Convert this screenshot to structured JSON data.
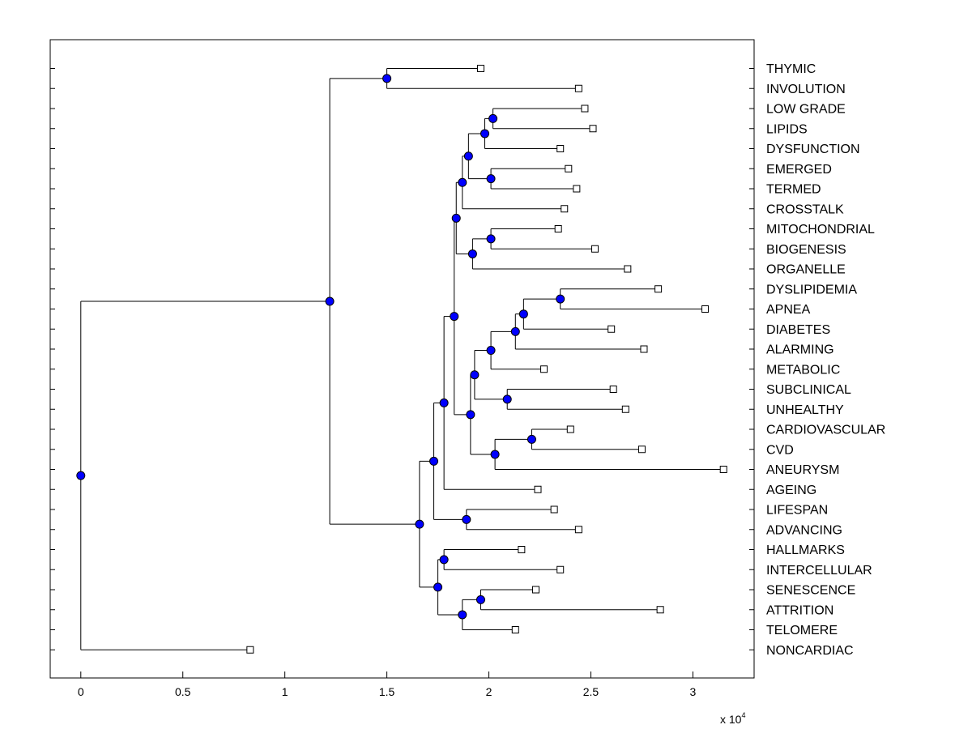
{
  "chart_data": {
    "type": "dendrogram",
    "title": "",
    "xlabel": "",
    "ylabel": "",
    "xlim": [
      -1500,
      33000
    ],
    "x_ticks": [
      {
        "value": 0,
        "label": "0"
      },
      {
        "value": 5000,
        "label": "0.5"
      },
      {
        "value": 10000,
        "label": "1"
      },
      {
        "value": 15000,
        "label": "1.5"
      },
      {
        "value": 20000,
        "label": "2"
      },
      {
        "value": 25000,
        "label": "2.5"
      },
      {
        "value": 30000,
        "label": "3"
      }
    ],
    "x_scale_label": "x 10",
    "x_scale_exponent": "4",
    "leaves": [
      {
        "label": "THYMIC",
        "x": 19600
      },
      {
        "label": "INVOLUTION",
        "x": 24400
      },
      {
        "label": "LOW GRADE",
        "x": 24700
      },
      {
        "label": "LIPIDS",
        "x": 25100
      },
      {
        "label": "DYSFUNCTION",
        "x": 23500
      },
      {
        "label": "EMERGED",
        "x": 23900
      },
      {
        "label": "TERMED",
        "x": 24300
      },
      {
        "label": "CROSSTALK",
        "x": 23700
      },
      {
        "label": "MITOCHONDRIAL",
        "x": 23400
      },
      {
        "label": "BIOGENESIS",
        "x": 25200
      },
      {
        "label": "ORGANELLE",
        "x": 26800
      },
      {
        "label": "DYSLIPIDEMIA",
        "x": 28300
      },
      {
        "label": "APNEA",
        "x": 30600
      },
      {
        "label": "DIABETES",
        "x": 26000
      },
      {
        "label": "ALARMING",
        "x": 27600
      },
      {
        "label": "METABOLIC",
        "x": 22700
      },
      {
        "label": "SUBCLINICAL",
        "x": 26100
      },
      {
        "label": "UNHEALTHY",
        "x": 26700
      },
      {
        "label": "CARDIOVASCULAR",
        "x": 24000
      },
      {
        "label": "CVD",
        "x": 27500
      },
      {
        "label": "ANEURYSM",
        "x": 31500
      },
      {
        "label": "AGEING",
        "x": 22400
      },
      {
        "label": "LIFESPAN",
        "x": 23200
      },
      {
        "label": "ADVANCING",
        "x": 24400
      },
      {
        "label": "HALLMARKS",
        "x": 21600
      },
      {
        "label": "INTERCELLULAR",
        "x": 23500
      },
      {
        "label": "SENESCENCE",
        "x": 22300
      },
      {
        "label": "ATTRITION",
        "x": 28400
      },
      {
        "label": "TELOMERE",
        "x": 21300
      },
      {
        "label": "NONCARDIAC",
        "x": 8300
      }
    ],
    "nodes": [
      {
        "id": "n_low_lipids",
        "x": 20200,
        "children": [
          "L2",
          "L3"
        ]
      },
      {
        "id": "n_lipgrp",
        "x": 19800,
        "children": [
          "n_low_lipids",
          "L4"
        ]
      },
      {
        "id": "n_emerged",
        "x": 20100,
        "children": [
          "L5",
          "L6"
        ]
      },
      {
        "id": "n_lip_em",
        "x": 19000,
        "children": [
          "n_lipgrp",
          "n_emerged"
        ]
      },
      {
        "id": "n_cross",
        "x": 18700,
        "children": [
          "n_lip_em",
          "L7"
        ]
      },
      {
        "id": "n_mito",
        "x": 20100,
        "children": [
          "L8",
          "L9"
        ]
      },
      {
        "id": "n_mito_org",
        "x": 19200,
        "children": [
          "n_mito",
          "L10"
        ]
      },
      {
        "id": "n_upper",
        "x": 18400,
        "children": [
          "n_cross",
          "n_mito_org"
        ]
      },
      {
        "id": "n_apnea",
        "x": 23500,
        "children": [
          "L11",
          "L12"
        ]
      },
      {
        "id": "n_diab",
        "x": 21700,
        "children": [
          "n_apnea",
          "L13"
        ]
      },
      {
        "id": "n_alarm",
        "x": 21300,
        "children": [
          "n_diab",
          "L14"
        ]
      },
      {
        "id": "n_metab",
        "x": 20100,
        "children": [
          "n_alarm",
          "L15"
        ]
      },
      {
        "id": "n_subcl",
        "x": 20900,
        "children": [
          "L16",
          "L17"
        ]
      },
      {
        "id": "n_met_sub",
        "x": 19300,
        "children": [
          "n_metab",
          "n_subcl"
        ]
      },
      {
        "id": "n_cvd",
        "x": 22100,
        "children": [
          "L18",
          "L19"
        ]
      },
      {
        "id": "n_aneu",
        "x": 20300,
        "children": [
          "n_cvd",
          "L20"
        ]
      },
      {
        "id": "n_met_cv",
        "x": 19100,
        "children": [
          "n_met_sub",
          "n_aneu"
        ]
      },
      {
        "id": "n_mid",
        "x": 18300,
        "children": [
          "n_upper",
          "n_met_cv"
        ]
      },
      {
        "id": "n_ageing",
        "x": 17800,
        "children": [
          "n_mid",
          "L21"
        ]
      },
      {
        "id": "n_lifespan",
        "x": 18900,
        "children": [
          "L22",
          "L23"
        ]
      },
      {
        "id": "n_age_life",
        "x": 17300,
        "children": [
          "n_ageing",
          "n_lifespan"
        ]
      },
      {
        "id": "n_hall",
        "x": 17800,
        "children": [
          "L24",
          "L25"
        ]
      },
      {
        "id": "n_sen",
        "x": 19600,
        "children": [
          "L26",
          "L27"
        ]
      },
      {
        "id": "n_telo",
        "x": 18700,
        "children": [
          "n_sen",
          "L28"
        ]
      },
      {
        "id": "n_hall_telo",
        "x": 17500,
        "children": [
          "n_hall",
          "n_telo"
        ]
      },
      {
        "id": "n_lower",
        "x": 16600,
        "children": [
          "n_age_life",
          "n_hall_telo"
        ]
      },
      {
        "id": "n_thymic",
        "x": 15000,
        "children": [
          "L0",
          "L1"
        ]
      },
      {
        "id": "n_main",
        "x": 12200,
        "children": [
          "n_thymic",
          "n_lower"
        ]
      },
      {
        "id": "n_root",
        "x": 0,
        "children": [
          "n_main",
          "L29"
        ]
      }
    ],
    "leaf_marker_color": "#ffffff",
    "node_marker_color": "#0000ff"
  }
}
